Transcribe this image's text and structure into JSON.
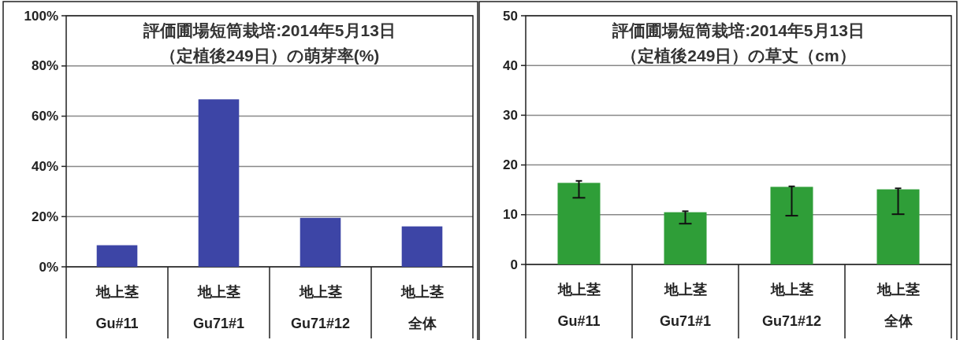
{
  "chart_data": [
    {
      "type": "bar",
      "title": "評価圃場短筒栽培:2014年5月13日（定植後249日）の萌芽率(%)",
      "categories": [
        "地上茎Gu#11",
        "地上茎Gu71#1",
        "地上茎Gu71#12",
        "地上茎全体"
      ],
      "values": [
        8.6,
        66.7,
        19.5,
        16.1
      ],
      "color": "#3d45a6",
      "ylim": [
        0,
        100
      ],
      "yticks": [
        {
          "value": 0,
          "label": "0%"
        },
        {
          "value": 20,
          "label": "20%"
        },
        {
          "value": 40,
          "label": "40%"
        },
        {
          "value": 60,
          "label": "60%"
        },
        {
          "value": 80,
          "label": "80%"
        },
        {
          "value": 100,
          "label": "100%"
        }
      ],
      "grid": "y"
    },
    {
      "type": "bar",
      "title": "評価圃場短筒栽培:2014年5月13日（定植後249日）の草丈（cm）",
      "categories": [
        "地上茎Gu#11",
        "地上茎Gu71#1",
        "地上茎Gu71#12",
        "地上茎全体"
      ],
      "values": [
        16.4,
        10.5,
        15.6,
        15.1
      ],
      "color": "#2f9e38",
      "errors": [
        [
          13.4,
          16.8
        ],
        [
          8.2,
          10.7
        ],
        [
          9.8,
          15.7
        ],
        [
          10.1,
          15.3
        ]
      ],
      "ylim": [
        0,
        50
      ],
      "yticks": [
        0,
        10,
        20,
        30,
        40,
        50
      ],
      "grid": "y"
    }
  ]
}
